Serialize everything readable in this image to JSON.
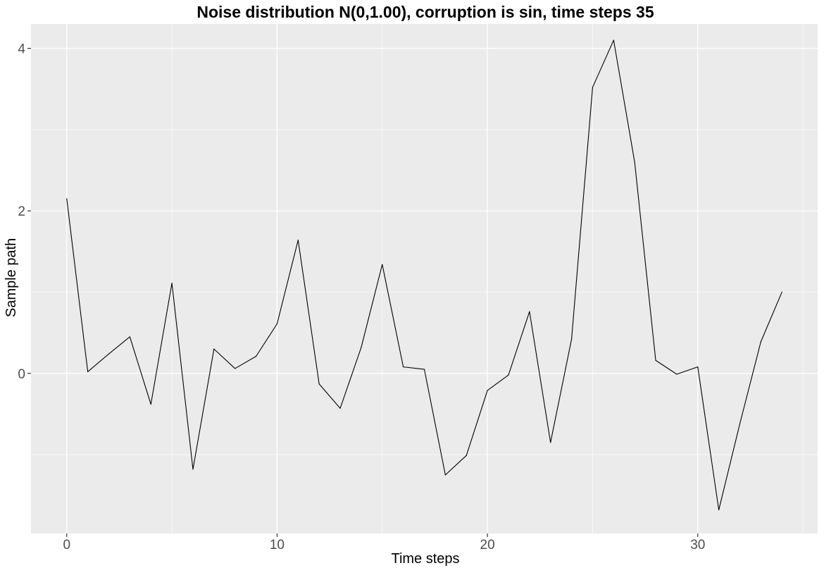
{
  "chart_data": {
    "type": "line",
    "title": "Noise distribution N(0,1.00), corruption is sin, time steps 35",
    "xlabel": "Time steps",
    "ylabel": "Sample path",
    "xlim": [
      -1.7,
      35.7
    ],
    "ylim": [
      -1.97,
      4.3
    ],
    "x_ticks": [
      0,
      10,
      20,
      30
    ],
    "y_ticks": [
      0,
      2,
      4
    ],
    "x_tick_labels": [
      "0",
      "10",
      "20",
      "30"
    ],
    "y_tick_labels": [
      "0",
      "2",
      "4"
    ],
    "grid": true,
    "legend": "none",
    "colors": {
      "panel": "#ebebeb",
      "grid": "#ffffff",
      "line": "#000000",
      "tick_mark": "#333333"
    },
    "series": [
      {
        "x": [
          0,
          1,
          2,
          3,
          4,
          5,
          6,
          7,
          8,
          9,
          10,
          11,
          12,
          13,
          14,
          15,
          16,
          17,
          18,
          19,
          20,
          21,
          22,
          23,
          24,
          25,
          26,
          27,
          28,
          29,
          30,
          31,
          32,
          33,
          34
        ],
        "values": [
          2.15,
          0.02,
          0.24,
          0.45,
          -0.38,
          1.11,
          -1.18,
          0.3,
          0.06,
          0.21,
          0.61,
          1.64,
          -0.13,
          -0.43,
          0.32,
          1.34,
          0.08,
          0.05,
          -1.25,
          -1.01,
          -0.21,
          -0.02,
          0.76,
          -0.85,
          0.42,
          3.52,
          4.1,
          2.6,
          0.16,
          -0.01,
          0.08,
          -1.68,
          -0.62,
          0.39,
          1.0
        ]
      }
    ]
  }
}
